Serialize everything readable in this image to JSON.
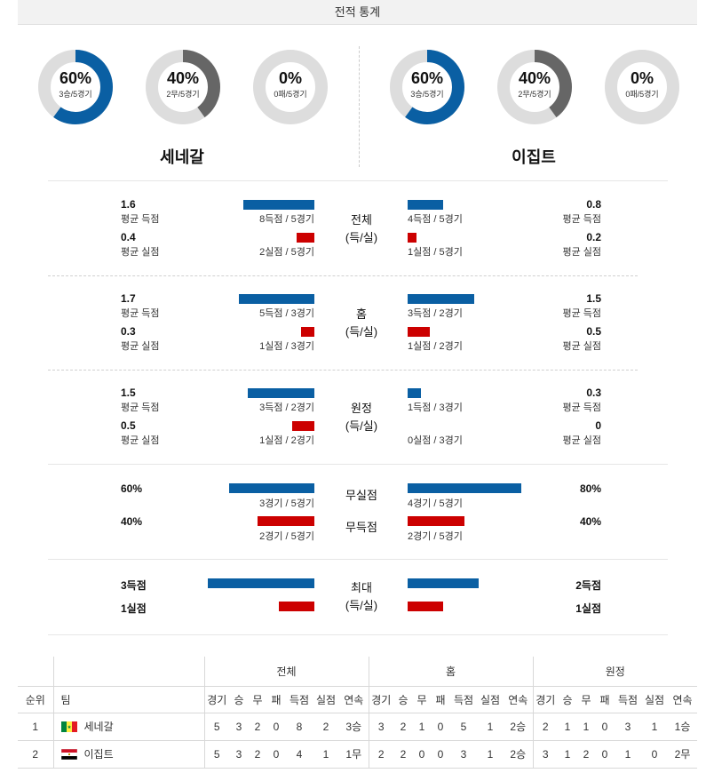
{
  "header": {
    "title": "전적 통계"
  },
  "colors": {
    "blue": "#0a5fa3",
    "red": "#cc0000",
    "gray": "#666666",
    "track": "#dddddd"
  },
  "teams": {
    "left": {
      "name": "세네갈",
      "donuts": [
        {
          "pct_value": 60,
          "pct": "60%",
          "sub": "3승/5경기",
          "color": "#0a5fa3"
        },
        {
          "pct_value": 40,
          "pct": "40%",
          "sub": "2무/5경기",
          "color": "#666666"
        },
        {
          "pct_value": 0,
          "pct": "0%",
          "sub": "0패/5경기",
          "color": "#666666"
        }
      ]
    },
    "right": {
      "name": "이집트",
      "donuts": [
        {
          "pct_value": 60,
          "pct": "60%",
          "sub": "3승/5경기",
          "color": "#0a5fa3"
        },
        {
          "pct_value": 40,
          "pct": "40%",
          "sub": "2무/5경기",
          "color": "#666666"
        },
        {
          "pct_value": 0,
          "pct": "0%",
          "sub": "0패/5경기",
          "color": "#666666"
        }
      ]
    }
  },
  "stats": {
    "overall": {
      "label_1": "전체",
      "label_2": "(득/실)",
      "left_scored_val": "1.6",
      "left_scored_lbl": "평균 득점",
      "left_scored_cap": "8득점 / 5경기",
      "left_scored_ratio": 1.6,
      "left_conceded_val": "0.4",
      "left_conceded_lbl": "평균 실점",
      "left_conceded_cap": "2실점 / 5경기",
      "left_conceded_ratio": 0.4,
      "right_scored_val": "0.8",
      "right_scored_lbl": "평균 득점",
      "right_scored_cap": "4득점 / 5경기",
      "right_scored_ratio": 0.8,
      "right_conceded_val": "0.2",
      "right_conceded_lbl": "평균 실점",
      "right_conceded_cap": "1실점 / 5경기",
      "right_conceded_ratio": 0.2
    },
    "home": {
      "label_1": "홈",
      "label_2": "(득/실)",
      "left_scored_val": "1.7",
      "left_scored_lbl": "평균 득점",
      "left_scored_cap": "5득점 / 3경기",
      "left_scored_ratio": 1.7,
      "left_conceded_val": "0.3",
      "left_conceded_lbl": "평균 실점",
      "left_conceded_cap": "1실점 / 3경기",
      "left_conceded_ratio": 0.3,
      "right_scored_val": "1.5",
      "right_scored_lbl": "평균 득점",
      "right_scored_cap": "3득점 / 2경기",
      "right_scored_ratio": 1.5,
      "right_conceded_val": "0.5",
      "right_conceded_lbl": "평균 실점",
      "right_conceded_cap": "1실점 / 2경기",
      "right_conceded_ratio": 0.5
    },
    "away": {
      "label_1": "원정",
      "label_2": "(득/실)",
      "left_scored_val": "1.5",
      "left_scored_lbl": "평균 득점",
      "left_scored_cap": "3득점 / 2경기",
      "left_scored_ratio": 1.5,
      "left_conceded_val": "0.5",
      "left_conceded_lbl": "평균 실점",
      "left_conceded_cap": "1실점 / 2경기",
      "left_conceded_ratio": 0.5,
      "right_scored_val": "0.3",
      "right_scored_lbl": "평균 득점",
      "right_scored_cap": "1득점 / 3경기",
      "right_scored_ratio": 0.3,
      "right_conceded_val": "0",
      "right_conceded_lbl": "평균 실점",
      "right_conceded_cap": "0실점 / 3경기",
      "right_conceded_ratio": 0
    },
    "clean": {
      "label_clean": "무실점",
      "label_nogoal": "무득점",
      "left_clean_val": "60%",
      "left_clean_cap": "3경기 / 5경기",
      "left_clean_ratio": 0.6,
      "left_nogoal_val": "40%",
      "left_nogoal_cap": "2경기 / 5경기",
      "left_nogoal_ratio": 0.4,
      "right_clean_val": "80%",
      "right_clean_cap": "4경기 / 5경기",
      "right_clean_ratio": 0.8,
      "right_nogoal_val": "40%",
      "right_nogoal_cap": "2경기 / 5경기",
      "right_nogoal_ratio": 0.4
    },
    "max": {
      "label_1": "최대",
      "label_2": "(득/실)",
      "left_scored_val": "3득점",
      "left_scored_n": 3,
      "left_conceded_val": "1실점",
      "left_conceded_n": 1,
      "right_scored_val": "2득점",
      "right_scored_n": 2,
      "right_conceded_val": "1실점",
      "right_conceded_n": 1
    }
  },
  "standings": {
    "group_total": "전체",
    "group_home": "홈",
    "group_away": "원정",
    "col_rank": "순위",
    "col_team": "팀",
    "sub_cols": [
      "경기",
      "승",
      "무",
      "패",
      "득점",
      "실점",
      "연속"
    ],
    "rows": [
      {
        "rank": "1",
        "team": "세네갈",
        "flag": "senegal-flag-icon",
        "total": [
          "5",
          "3",
          "2",
          "0",
          "8",
          "2",
          "3승"
        ],
        "home": [
          "3",
          "2",
          "1",
          "0",
          "5",
          "1",
          "2승"
        ],
        "away": [
          "2",
          "1",
          "1",
          "0",
          "3",
          "1",
          "1승"
        ]
      },
      {
        "rank": "2",
        "team": "이집트",
        "flag": "egypt-flag-icon",
        "total": [
          "5",
          "3",
          "2",
          "0",
          "4",
          "1",
          "1무"
        ],
        "home": [
          "2",
          "2",
          "0",
          "0",
          "3",
          "1",
          "2승"
        ],
        "away": [
          "3",
          "1",
          "2",
          "0",
          "1",
          "0",
          "2무"
        ]
      }
    ]
  }
}
